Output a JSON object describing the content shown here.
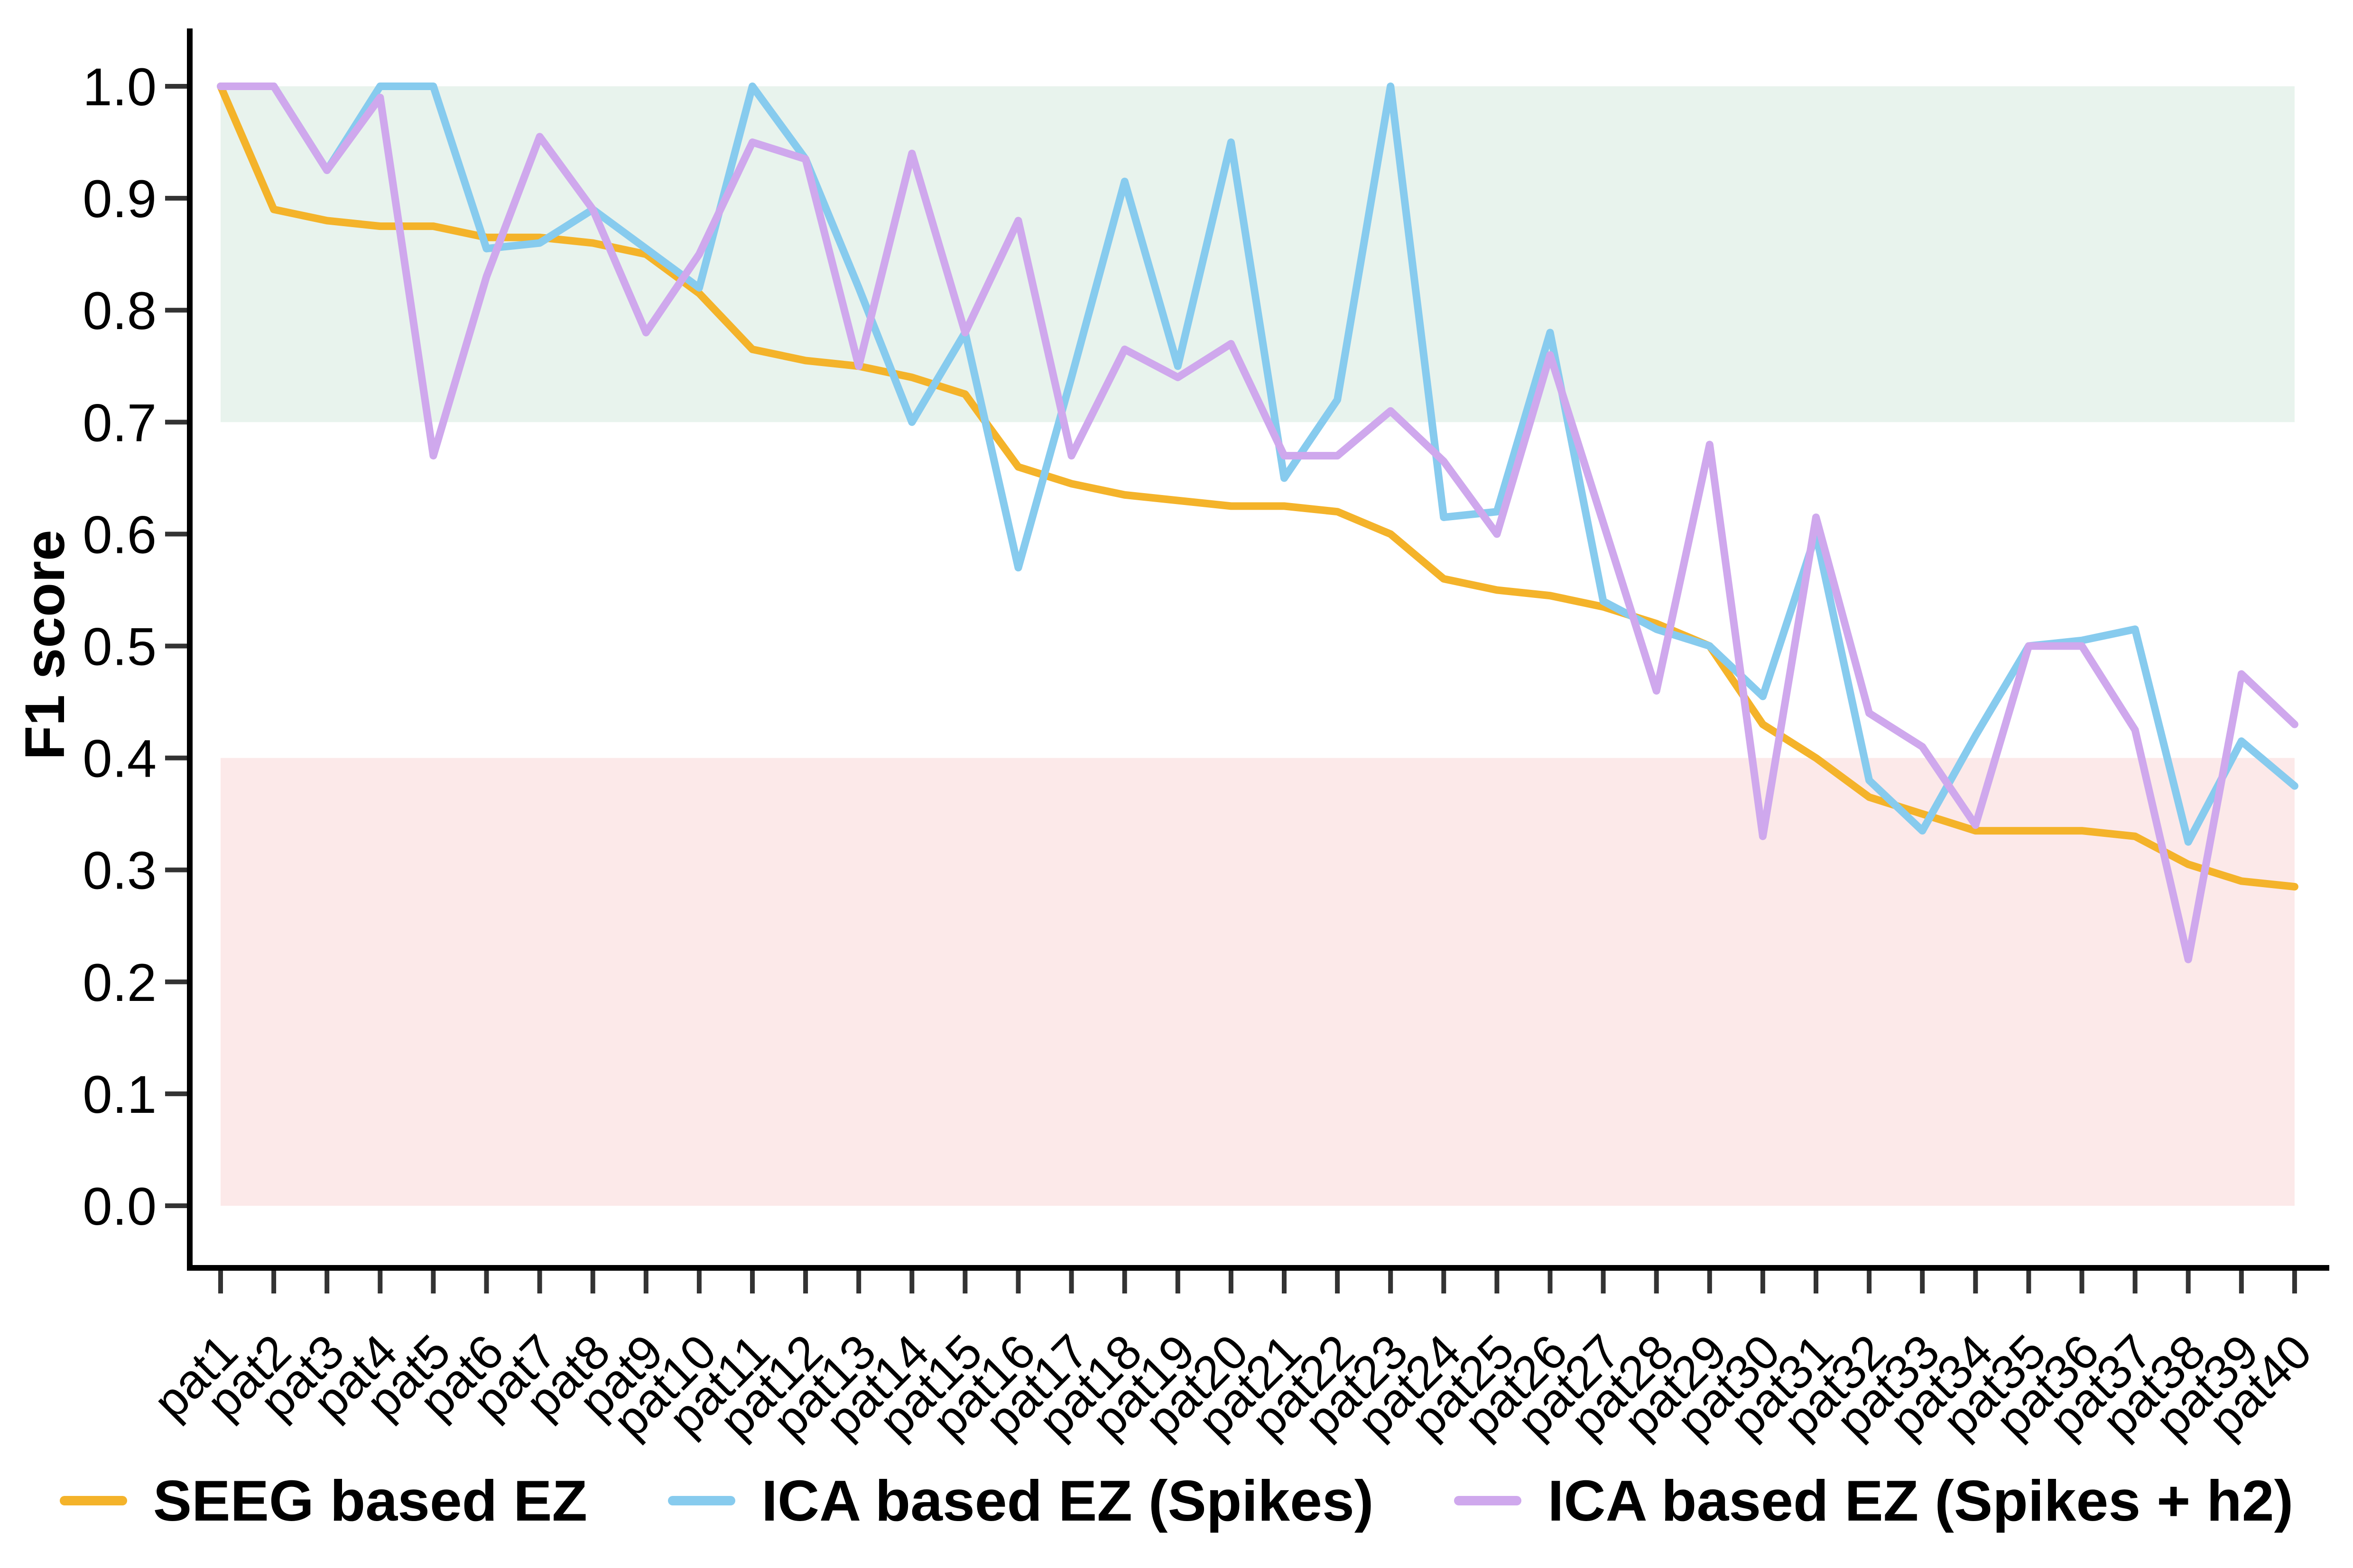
{
  "figure": {
    "title": "",
    "y_axis_title": "F1 score"
  },
  "chart_data": {
    "type": "line",
    "title": "",
    "xlabel": "",
    "ylabel": "F1 score",
    "ylim": [
      0.0,
      1.0
    ],
    "yticks": [
      0.0,
      0.1,
      0.2,
      0.3,
      0.4,
      0.5,
      0.6,
      0.7,
      0.8,
      0.9,
      1.0
    ],
    "ytick_labels": [
      "0.0",
      "0.1",
      "0.2",
      "0.3",
      "0.4",
      "0.5",
      "0.6",
      "0.7",
      "0.8",
      "0.9",
      "1.0"
    ],
    "grid": false,
    "legend_position": "bottom",
    "bands": [
      {
        "name": "high-f1-band",
        "from": 0.7,
        "to": 1.0,
        "color": "#E8F3ED"
      },
      {
        "name": "low-f1-band",
        "from": 0.0,
        "to": 0.4,
        "color": "#FCE9E9"
      }
    ],
    "categories": [
      "pat1",
      "pat2",
      "pat3",
      "pat4",
      "pat5",
      "pat6",
      "pat7",
      "pat8",
      "pat9",
      "pat10",
      "pat11",
      "pat12",
      "pat13",
      "pat14",
      "pat15",
      "pat16",
      "pat17",
      "pat18",
      "pat19",
      "pat20",
      "pat21",
      "pat22",
      "pat23",
      "pat24",
      "pat25",
      "pat26",
      "pat27",
      "pat28",
      "pat29",
      "pat30",
      "pat31",
      "pat32",
      "pat33",
      "pat34",
      "pat35",
      "pat36",
      "pat37",
      "pat38",
      "pat39",
      "pat40"
    ],
    "series": [
      {
        "name": "SEEG based EZ",
        "color": "#F4B32A",
        "values": [
          1.0,
          0.89,
          0.88,
          0.875,
          0.875,
          0.865,
          0.865,
          0.86,
          0.85,
          0.815,
          0.765,
          0.755,
          0.75,
          0.74,
          0.725,
          0.66,
          0.645,
          0.635,
          0.63,
          0.625,
          0.625,
          0.62,
          0.6,
          0.56,
          0.55,
          0.545,
          0.535,
          0.52,
          0.5,
          0.43,
          0.4,
          0.365,
          0.35,
          0.335,
          0.335,
          0.335,
          0.33,
          0.305,
          0.29,
          0.285
        ]
      },
      {
        "name": "ICA based EZ (Spikes)",
        "color": "#87CBEE",
        "values": [
          1.0,
          1.0,
          0.925,
          1.0,
          1.0,
          0.855,
          0.86,
          0.89,
          0.855,
          0.82,
          1.0,
          0.935,
          0.82,
          0.7,
          0.78,
          0.57,
          0.74,
          0.915,
          0.75,
          0.95,
          0.65,
          0.72,
          1.0,
          0.615,
          0.62,
          0.78,
          0.54,
          0.515,
          0.5,
          0.455,
          0.6,
          0.38,
          0.335,
          0.42,
          0.5,
          0.505,
          0.515,
          0.325,
          0.415,
          0.375
        ]
      },
      {
        "name": "ICA based EZ (Spikes + h2)",
        "color": "#CFA8ED",
        "values": [
          1.0,
          1.0,
          0.925,
          0.99,
          0.67,
          0.83,
          0.955,
          0.89,
          0.78,
          0.85,
          0.95,
          0.935,
          0.75,
          0.94,
          0.78,
          0.88,
          0.67,
          0.765,
          0.74,
          0.77,
          0.67,
          0.67,
          0.71,
          0.665,
          0.6,
          0.76,
          0.61,
          0.46,
          0.68,
          0.33,
          0.615,
          0.44,
          0.41,
          0.34,
          0.5,
          0.5,
          0.425,
          0.22,
          0.475,
          0.43
        ]
      }
    ]
  },
  "legend": {
    "items": [
      {
        "label": "SEEG based EZ",
        "color": "#F4B32A"
      },
      {
        "label": "ICA based EZ (Spikes)",
        "color": "#87CBEE"
      },
      {
        "label": "ICA based EZ (Spikes + h2)",
        "color": "#CFA8ED"
      }
    ]
  }
}
